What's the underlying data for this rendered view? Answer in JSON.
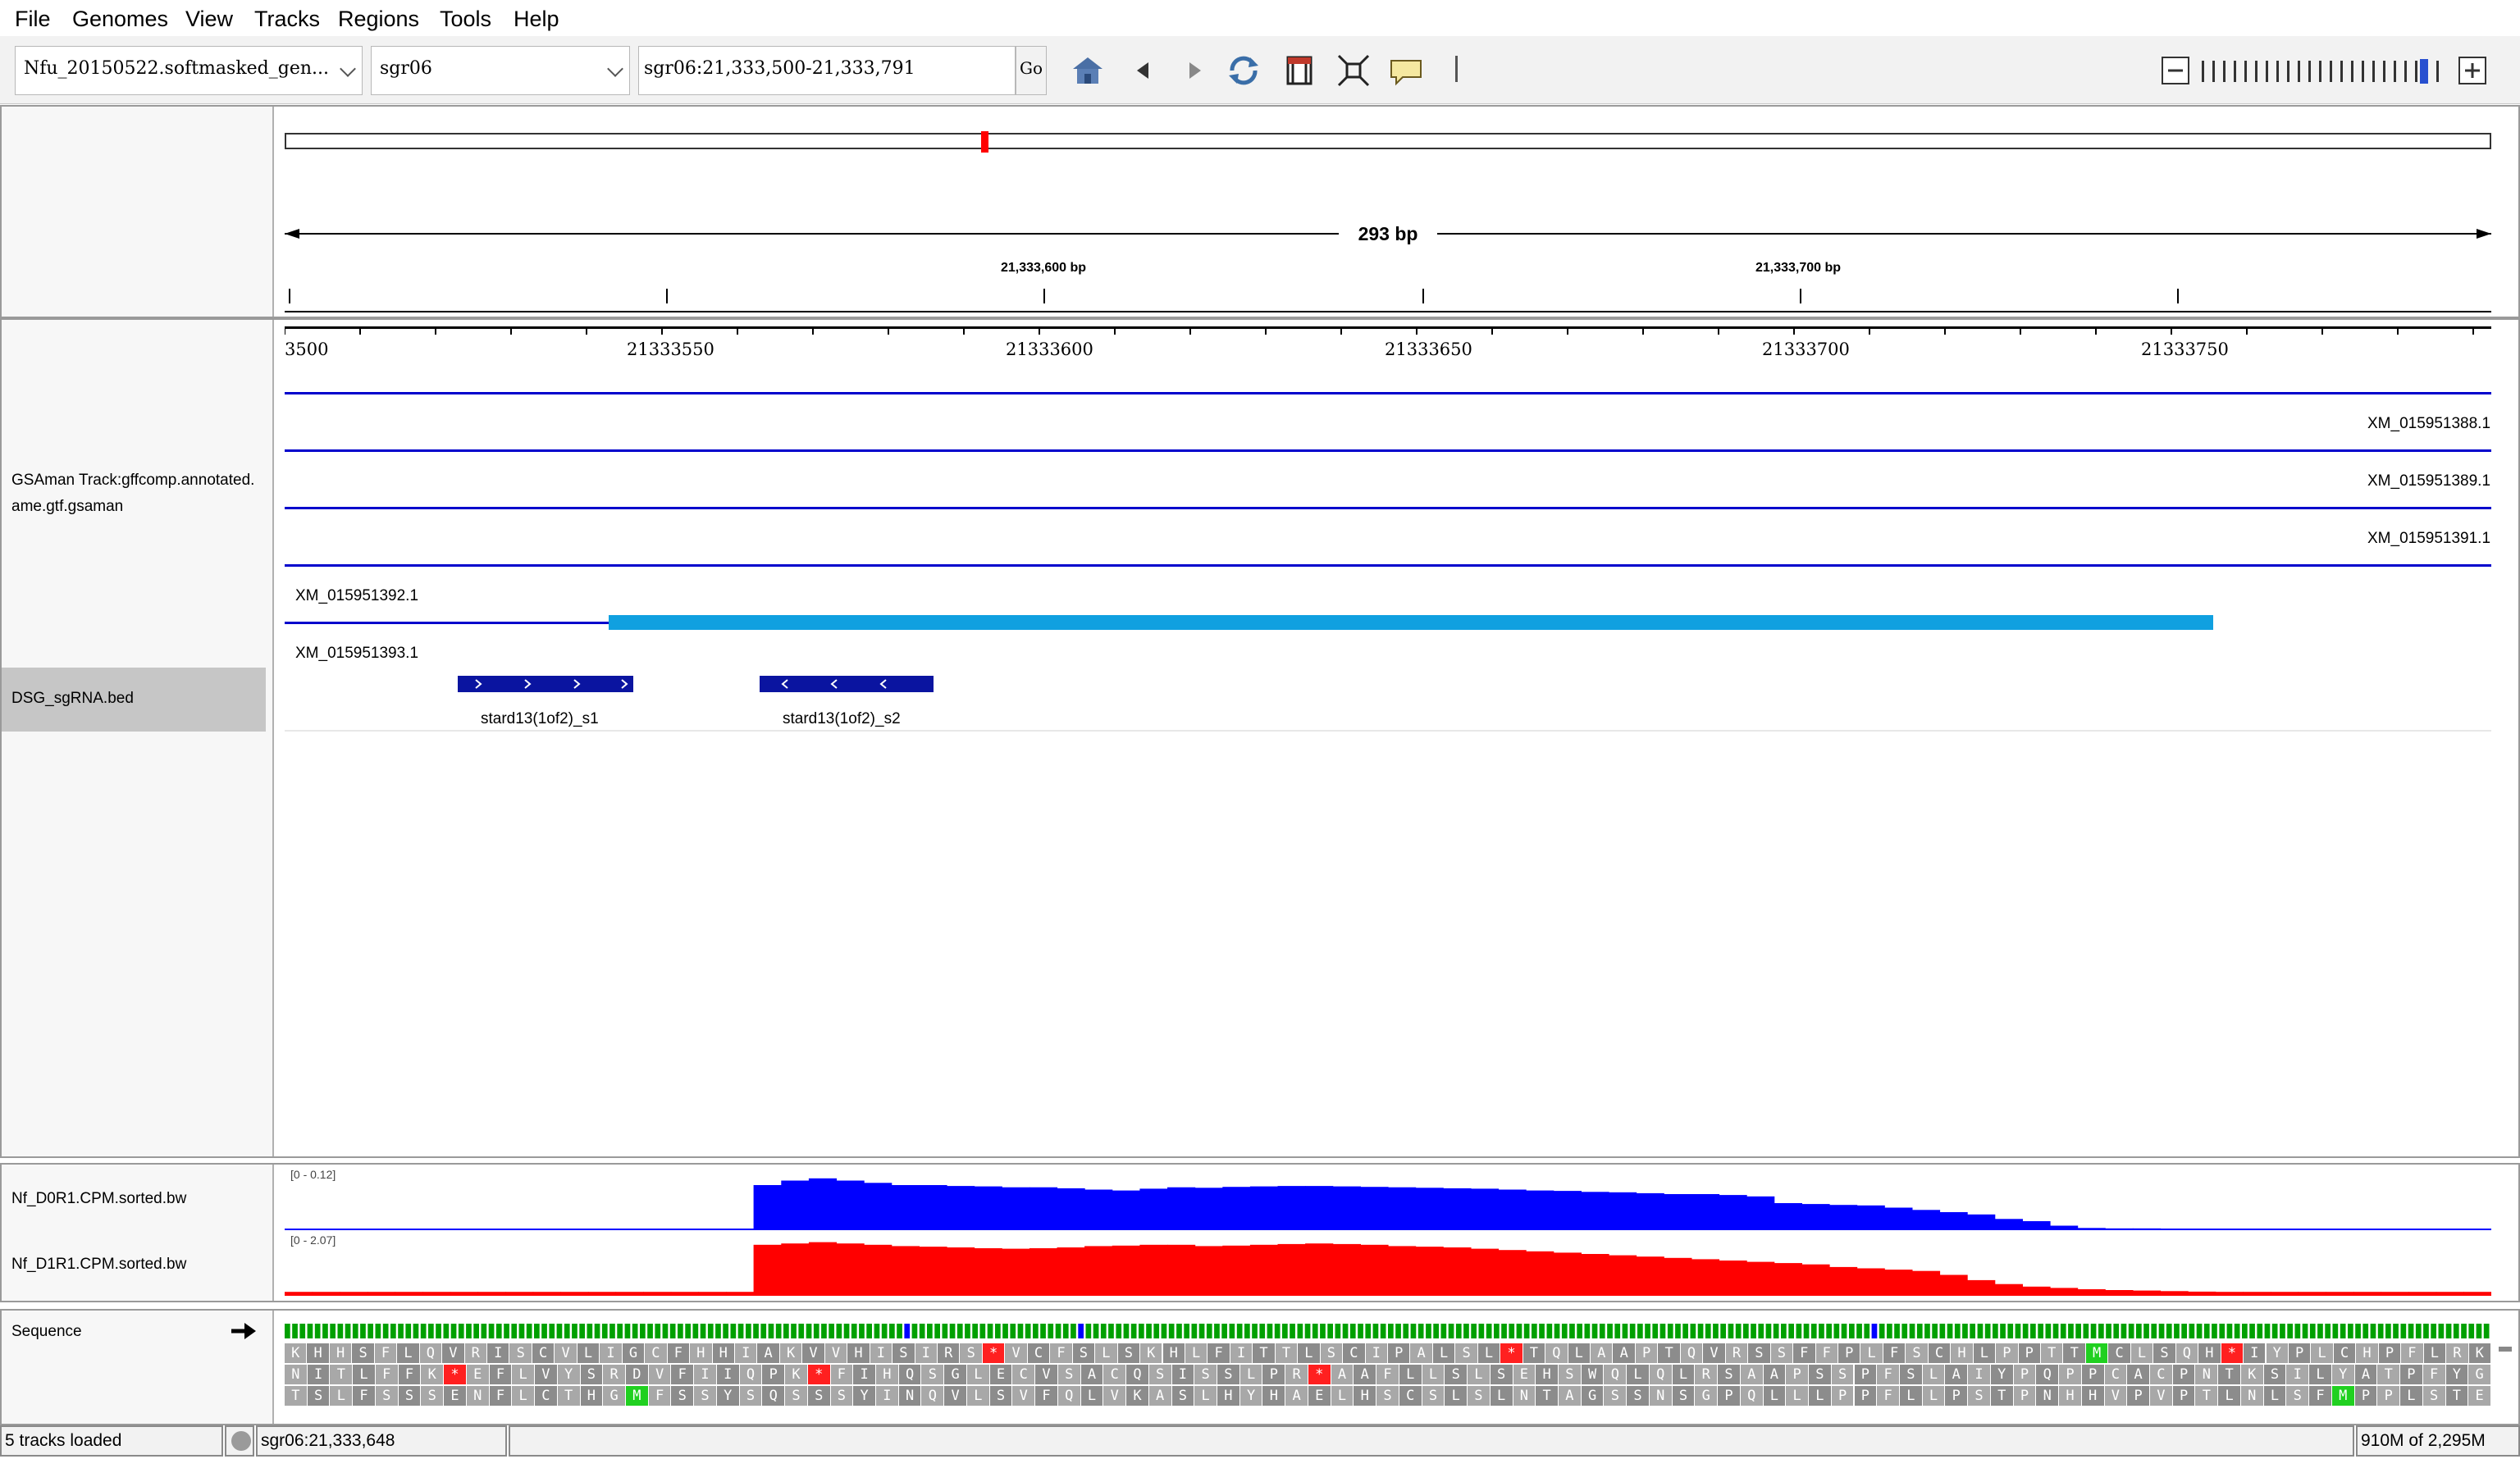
{
  "menu": [
    "File",
    "Genomes",
    "View",
    "Tracks",
    "Regions",
    "Tools",
    "Help"
  ],
  "toolbar": {
    "genome_value": "Nfu_20150522.softmasked_gen...",
    "chromosome_value": "sgr06",
    "locus_value": "sgr06:21,333,500-21,333,791",
    "go_label": "Go"
  },
  "ideogram": {
    "span_label": "293 bp",
    "top_tick_labels": [
      "21,333,600 bp",
      "21,333,700 bp"
    ]
  },
  "ruler_labels": [
    "3500",
    "21333550",
    "21333600",
    "21333650",
    "21333700",
    "21333750"
  ],
  "tracks": {
    "gsaman_label_line1": "GSAman Track:gffcomp.annotated.",
    "gsaman_label_line2": "ame.gtf.gsaman",
    "transcripts": [
      "XM_015951388.1",
      "XM_015951389.1",
      "XM_015951391.1",
      "XM_015951392.1",
      "XM_015951393.1"
    ],
    "sgrna_label": "DSG_sgRNA.bed",
    "sgrna_features": [
      "stard13(1of2)_s1",
      "stard13(1of2)_s2"
    ],
    "bw1_label": "Nf_D0R1.CPM.sorted.bw",
    "bw1_range": "[0 - 0.12]",
    "bw2_label": "Nf_D1R1.CPM.sorted.bw",
    "bw2_range": "[0 - 2.07]",
    "sequence_label": "Sequence"
  },
  "colors": {
    "bw1": "#0000ff",
    "bw2": "#ff0000",
    "gene": "#0000cc",
    "exon": "#10a0e0",
    "sgrna": "#0a14a0"
  },
  "coverage": {
    "bw1_max": 0.12,
    "bw2_max": 2.07,
    "bw1_profile": [
      0,
      0,
      0,
      0,
      0,
      0,
      0,
      0,
      0,
      0,
      0,
      0,
      0,
      0,
      0,
      0,
      0,
      0.1,
      0.11,
      0.115,
      0.11,
      0.105,
      0.1,
      0.1,
      0.098,
      0.097,
      0.095,
      0.095,
      0.093,
      0.09,
      0.088,
      0.092,
      0.095,
      0.094,
      0.096,
      0.097,
      0.098,
      0.098,
      0.097,
      0.096,
      0.095,
      0.094,
      0.093,
      0.092,
      0.09,
      0.088,
      0.087,
      0.085,
      0.084,
      0.082,
      0.08,
      0.08,
      0.078,
      0.075,
      0.06,
      0.058,
      0.056,
      0.055,
      0.05,
      0.045,
      0.04,
      0.035,
      0.025,
      0.02,
      0.01,
      0.005,
      0.004,
      0.004,
      0.003,
      0.002,
      0,
      0,
      0,
      0,
      0,
      0,
      0,
      0,
      0,
      0
    ],
    "bw2_profile": [
      0.15,
      0.15,
      0.15,
      0.15,
      0.15,
      0.15,
      0.15,
      0.15,
      0.15,
      0.15,
      0.15,
      0.15,
      0.15,
      0.15,
      0.15,
      0.15,
      0.15,
      1.95,
      2.0,
      2.05,
      2.0,
      1.95,
      1.9,
      1.88,
      1.85,
      1.82,
      1.8,
      1.82,
      1.85,
      1.9,
      1.92,
      1.95,
      1.95,
      1.9,
      1.92,
      1.95,
      1.98,
      2.0,
      1.98,
      1.95,
      1.9,
      1.88,
      1.85,
      1.8,
      1.75,
      1.7,
      1.65,
      1.6,
      1.55,
      1.5,
      1.45,
      1.4,
      1.35,
      1.3,
      1.25,
      1.2,
      1.1,
      1.05,
      1.0,
      0.95,
      0.8,
      0.6,
      0.45,
      0.35,
      0.3,
      0.25,
      0.22,
      0.2,
      0.18,
      0.16,
      0.15,
      0.15,
      0.15,
      0.15,
      0.15,
      0.15,
      0.15,
      0.15,
      0.15,
      0.15
    ]
  },
  "sequence": {
    "frame1": "KHHSFLQVRISCVLIGCFHHIAKVVHISIRS*VCFSLSKHLFITTLSCIPALSL*TQLAAPTQVRSSFFPLFSCHLPPTTMCLSQH*IYPLCHPFLRK",
    "frame2": "NITLFFK*EFLVYSRDVFIIQPK*FIHQSGLECVSACQSISSLPR*AAFLLSLSEHSWQLQLRSAAPSSPFSLAIYPQPPCACPNTKSILYATPFYG",
    "frame3": "TSLFSSSENFLCTHGMFSSYSQSSSYINQVLSVFQLVKASLHYHAELHSCSLSLNTAGSSNSGPQLLLPPFLLPSTPNHHVPVPTLNLSFMPPLSTE"
  },
  "status": {
    "tracks_loaded": "5 tracks loaded",
    "locus": "sgr06:21,333,648",
    "memory": "910M of 2,295M"
  }
}
